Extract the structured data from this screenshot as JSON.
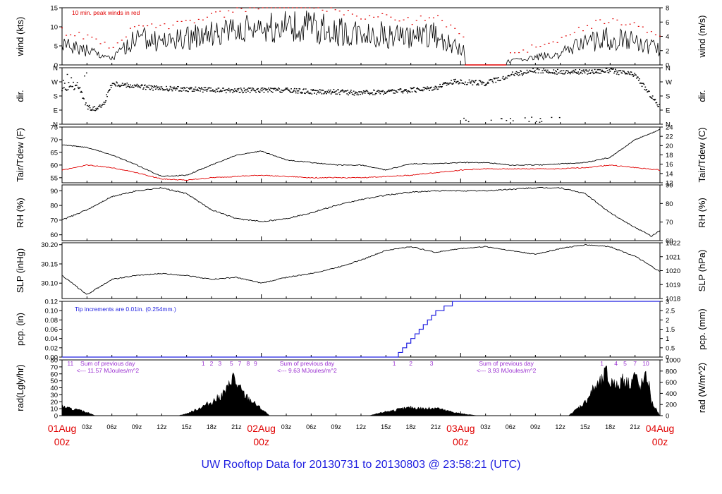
{
  "footer": {
    "title": "UW Rooftop Data for 20130731  to  20130803 @ 23:58:21  (UTC)"
  },
  "x_axis": {
    "hour_ticks": [
      "03z",
      "06z",
      "09z",
      "12z",
      "15z",
      "18z",
      "21z",
      "03z",
      "06z",
      "09z",
      "12z",
      "15z",
      "18z",
      "21z",
      "03z",
      "06z",
      "09z",
      "12z",
      "15z",
      "18z",
      "21z"
    ],
    "day_labels": [
      {
        "day": "01Aug",
        "time": "00z"
      },
      {
        "day": "02Aug",
        "time": "00z"
      },
      {
        "day": "03Aug",
        "time": "00z"
      },
      {
        "day": "04Aug",
        "time": "00z"
      }
    ]
  },
  "chart_data": [
    {
      "id": "wind",
      "type": "line",
      "ylabel": "wind (kts)",
      "ylabel_right": "wind (m/s)",
      "ylim": [
        0,
        15
      ],
      "yticks": [
        0,
        5,
        10,
        15
      ],
      "right_yticks": [
        "0",
        "2",
        "4",
        "6",
        "8"
      ],
      "annotation": "10 min. peak winds in red",
      "series": [
        {
          "name": "10 min. peak winds",
          "color": "#e00000"
        }
      ],
      "profile": {
        "x": [
          0,
          3,
          6,
          9,
          12,
          15,
          18,
          21,
          24,
          27,
          30,
          33,
          36,
          39,
          42,
          45,
          48,
          51,
          54,
          57,
          60,
          63,
          66,
          69,
          72
        ],
        "y": [
          5,
          4,
          1.5,
          7,
          6,
          7,
          8,
          9,
          10,
          10,
          10,
          9,
          8,
          8,
          7,
          8,
          4,
          1,
          1,
          2,
          3,
          6,
          7,
          6,
          4
        ]
      }
    },
    {
      "id": "dir",
      "type": "scatter",
      "ylabel": "dir.",
      "ylabel_right": "dir.",
      "ylim": [
        0,
        4
      ],
      "yticks": [
        "N",
        "E",
        "S",
        "W",
        "N"
      ],
      "right_yticks": [
        "N",
        "E",
        "S",
        "W",
        "N"
      ],
      "profile": {
        "x": [
          0,
          2,
          3,
          4,
          5,
          6,
          9,
          12,
          15,
          18,
          21,
          24,
          27,
          30,
          33,
          36,
          39,
          42,
          45,
          47,
          48,
          51,
          54,
          57,
          60,
          63,
          66,
          69,
          72
        ],
        "y": [
          2.4,
          2.7,
          1.2,
          1.1,
          1.4,
          2.9,
          2.7,
          2.5,
          2.5,
          2.4,
          2.4,
          2.4,
          2.4,
          2.3,
          2.3,
          2.2,
          2.3,
          2.4,
          2.6,
          3.0,
          3.0,
          2.9,
          3.5,
          3.8,
          3.7,
          3.7,
          3.8,
          3.5,
          1.2
        ]
      }
    },
    {
      "id": "temp",
      "type": "line",
      "ylabel": "Tair/Tdew (F)",
      "ylabel_right": "Tair/Tdew (C)",
      "ylim": [
        53,
        75
      ],
      "yticks": [
        55,
        60,
        65,
        70,
        75
      ],
      "right_yticks": [
        "12",
        "14",
        "16",
        "18",
        "20",
        "22",
        "24"
      ],
      "series": [
        {
          "name": "Tair",
          "color": "#000000",
          "x": [
            0,
            3,
            6,
            9,
            12,
            15,
            18,
            21,
            24,
            27,
            30,
            33,
            36,
            39,
            42,
            45,
            48,
            51,
            54,
            57,
            60,
            63,
            66,
            69,
            72
          ],
          "y": [
            68,
            67,
            64,
            60,
            55.5,
            56,
            60,
            64,
            65.5,
            62,
            61,
            60,
            60,
            58,
            60.5,
            60.5,
            61,
            61,
            60,
            60,
            60.5,
            61,
            63,
            70,
            74
          ]
        },
        {
          "name": "Tdew",
          "color": "#e00000",
          "x": [
            0,
            3,
            6,
            9,
            12,
            15,
            18,
            21,
            24,
            27,
            30,
            33,
            36,
            39,
            42,
            45,
            48,
            51,
            54,
            57,
            60,
            63,
            66,
            69,
            72
          ],
          "y": [
            58,
            60,
            59,
            57,
            54.5,
            54,
            55,
            55.5,
            56,
            55.5,
            55,
            55,
            55,
            55.5,
            56,
            57,
            58,
            58.5,
            58.5,
            58.5,
            58.5,
            59,
            60,
            59,
            58
          ]
        }
      ]
    },
    {
      "id": "rh",
      "type": "line",
      "ylabel": "RH (%)",
      "ylabel_right": "RH (%)",
      "ylim": [
        56,
        94
      ],
      "yticks": [
        60,
        70,
        80,
        90
      ],
      "right_yticks": [
        "60",
        "70",
        "80",
        "90"
      ],
      "series": [
        {
          "name": "RH",
          "color": "#000000",
          "x": [
            0,
            3,
            6,
            9,
            12,
            15,
            18,
            21,
            24,
            27,
            30,
            33,
            36,
            39,
            42,
            45,
            48,
            51,
            54,
            57,
            60,
            63,
            66,
            69,
            71,
            72
          ],
          "y": [
            70,
            77,
            86,
            90,
            92,
            88,
            77,
            71,
            69,
            71,
            75,
            80,
            84,
            87,
            89,
            90,
            90,
            90,
            91,
            92,
            92,
            88,
            75,
            65,
            59,
            63
          ]
        }
      ]
    },
    {
      "id": "slp",
      "type": "line",
      "ylabel": "SLP (inHg)",
      "ylabel_right": "SLP (hPa)",
      "ylim": [
        30.06,
        30.205
      ],
      "yticks": [
        30.1,
        30.15,
        30.2
      ],
      "right_yticks": [
        "1018",
        "1019",
        "1020",
        "1021",
        "1022"
      ],
      "series": [
        {
          "name": "SLP",
          "color": "#000000",
          "x": [
            0,
            3,
            6,
            9,
            12,
            15,
            18,
            21,
            24,
            27,
            30,
            33,
            36,
            39,
            42,
            45,
            48,
            51,
            54,
            57,
            60,
            63,
            66,
            69,
            72
          ],
          "y": [
            30.12,
            30.07,
            30.11,
            30.12,
            30.125,
            30.12,
            30.11,
            30.115,
            30.1,
            30.115,
            30.125,
            30.14,
            30.16,
            30.185,
            30.195,
            30.18,
            30.19,
            30.195,
            30.185,
            30.175,
            30.19,
            30.2,
            30.195,
            30.17,
            30.13
          ]
        }
      ]
    },
    {
      "id": "pcp",
      "type": "line",
      "ylabel": "pcp. (in)",
      "ylabel_right": "pcp. (mm)",
      "ylim": [
        0,
        0.12
      ],
      "yticks": [
        0,
        0.02,
        0.04,
        0.06,
        0.08,
        0.1,
        0.12
      ],
      "right_yticks": [
        "0",
        "0.5",
        "1",
        "1.5",
        "2",
        "2.5",
        "3"
      ],
      "annotation": "Tip increments are 0.01in. (0.254mm.)",
      "series": [
        {
          "name": "Precipitation",
          "color": "#1f1fe0",
          "x": [
            0,
            40,
            40.5,
            41,
            41.5,
            42,
            42.5,
            43,
            43.5,
            44,
            44.5,
            45,
            45.5,
            46,
            46.5,
            47,
            72
          ],
          "y": [
            0,
            0,
            0.01,
            0.02,
            0.03,
            0.04,
            0.05,
            0.06,
            0.07,
            0.08,
            0.09,
            0.1,
            0.1,
            0.11,
            0.11,
            0.12,
            0.12
          ]
        }
      ]
    },
    {
      "id": "rad",
      "type": "area",
      "ylabel": "rad(Lgly/hr)",
      "ylabel_right": "rad (W/m^2)",
      "ylim": [
        0,
        80
      ],
      "yticks": [
        0,
        10,
        20,
        30,
        40,
        50,
        60,
        70,
        80
      ],
      "right_yticks": [
        "0",
        "200",
        "400",
        "600",
        "800",
        "1000"
      ],
      "annotations": [
        {
          "text": "Sum of previous day",
          "at": 5.5,
          "row": 0
        },
        {
          "text": "<--- 11.57 MJoules/m^2",
          "at": 5.5,
          "row": 1
        },
        {
          "text": "Sum of previous day",
          "at": 29.5,
          "row": 0
        },
        {
          "text": "<--- 9.63 MJoules/m^2",
          "at": 29.5,
          "row": 1
        },
        {
          "text": "Sum of previous day",
          "at": 53.5,
          "row": 0
        },
        {
          "text": "<--- 3.93 MJoules/m^2",
          "at": 53.5,
          "row": 1
        },
        {
          "text": "11",
          "at": 1,
          "row": 0
        },
        {
          "text": "1",
          "at": 17,
          "row": 0
        },
        {
          "text": "2",
          "at": 18,
          "row": 0
        },
        {
          "text": "3",
          "at": 19,
          "row": 0
        },
        {
          "text": "5",
          "at": 20.4,
          "row": 0
        },
        {
          "text": "7",
          "at": 21.4,
          "row": 0
        },
        {
          "text": "8",
          "at": 22.4,
          "row": 0
        },
        {
          "text": "9",
          "at": 23.3,
          "row": 0
        },
        {
          "text": "1",
          "at": 40,
          "row": 0
        },
        {
          "text": "2",
          "at": 42,
          "row": 0
        },
        {
          "text": "3",
          "at": 44.5,
          "row": 0
        },
        {
          "text": "1",
          "at": 65,
          "row": 0
        },
        {
          "text": "4",
          "at": 66.7,
          "row": 0
        },
        {
          "text": "5",
          "at": 67.8,
          "row": 0
        },
        {
          "text": "7",
          "at": 69,
          "row": 0
        },
        {
          "text": "10",
          "at": 70.3,
          "row": 0
        }
      ],
      "series": [
        {
          "name": "Radiation",
          "color": "#000000",
          "x": [
            0,
            1,
            2,
            3,
            4,
            14,
            15,
            16,
            17,
            18,
            19,
            20,
            20.5,
            21,
            21.5,
            22,
            23,
            24,
            25,
            37,
            38,
            39,
            40,
            41,
            42,
            43,
            44,
            45,
            46,
            48,
            50,
            61,
            62,
            63,
            64,
            65,
            65.5,
            66,
            66.5,
            67,
            67.5,
            68,
            68.5,
            69,
            69.5,
            70,
            70.5,
            71,
            72
          ],
          "y": [
            14,
            10,
            8,
            5,
            0,
            0,
            3,
            8,
            14,
            20,
            28,
            40,
            60,
            46,
            38,
            30,
            20,
            10,
            0,
            0,
            3,
            6,
            8,
            10,
            12,
            11,
            10,
            12,
            8,
            3,
            0,
            0,
            10,
            20,
            40,
            50,
            65,
            45,
            55,
            38,
            60,
            48,
            50,
            62,
            40,
            50,
            58,
            20,
            0
          ]
        }
      ]
    }
  ]
}
